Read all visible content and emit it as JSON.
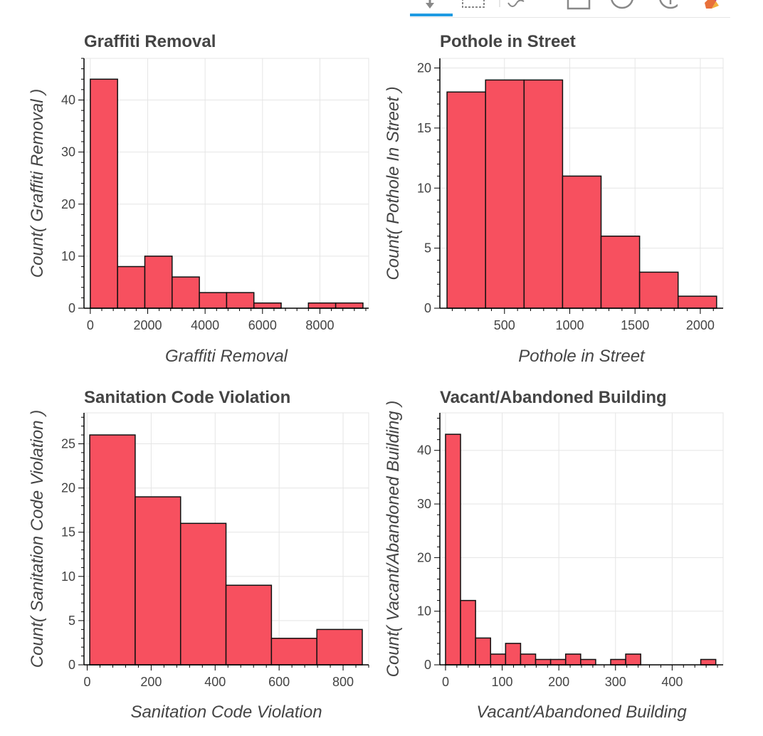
{
  "toolbar": {
    "tools": [
      {
        "name": "pan-tool-icon",
        "active": true
      },
      {
        "name": "box-zoom-tool-icon",
        "active": false
      },
      {
        "name": "wheel-zoom-tool-icon",
        "active": false
      },
      {
        "name": "save-tool-icon",
        "active": false
      },
      {
        "name": "reset-tool-icon",
        "active": false
      },
      {
        "name": "help-tool-icon",
        "active": false
      },
      {
        "name": "bokeh-logo-icon",
        "active": false
      }
    ],
    "active_color": "#1f9be2"
  },
  "colors": {
    "bar_fill": "#f7505f",
    "bar_stroke": "#111111",
    "grid": "#e5e5e5",
    "text": "#444444"
  },
  "chart_data": [
    {
      "type": "bar",
      "title": "Graffiti Removal",
      "xlabel": "Graffiti Removal",
      "ylabel": "Count( Graffiti Removal )",
      "bins": [
        [
          0,
          950
        ],
        [
          950,
          1900
        ],
        [
          1900,
          2850
        ],
        [
          2850,
          3800
        ],
        [
          3800,
          4750
        ],
        [
          4750,
          5700
        ],
        [
          5700,
          6650
        ],
        [
          6650,
          7600
        ],
        [
          7600,
          8550
        ],
        [
          8550,
          9500
        ]
      ],
      "values": [
        44,
        8,
        10,
        6,
        3,
        3,
        1,
        0,
        1,
        1
      ],
      "xlim": [
        -220,
        9700
      ],
      "ylim": [
        0,
        48
      ],
      "xticks": [
        0,
        2000,
        4000,
        6000,
        8000
      ],
      "xtick_labels": [
        "0",
        "2000",
        "4000",
        "6000",
        "8000"
      ],
      "yticks": [
        0,
        10,
        20,
        30,
        40
      ],
      "ytick_labels": [
        "0",
        "10",
        "20",
        "30",
        "40"
      ],
      "grid": true
    },
    {
      "type": "bar",
      "title": "Pothole in Street",
      "xlabel": "Pothole in Street",
      "ylabel": "Count( Pothole In Street )",
      "bins": [
        [
          60,
          355
        ],
        [
          355,
          650
        ],
        [
          650,
          945
        ],
        [
          945,
          1240
        ],
        [
          1240,
          1535
        ],
        [
          1535,
          1830
        ],
        [
          1830,
          2125
        ]
      ],
      "values": [
        18,
        19,
        19,
        11,
        6,
        3,
        1
      ],
      "xlim": [
        5,
        2175
      ],
      "ylim": [
        0,
        20.8
      ],
      "xticks": [
        500,
        1000,
        1500,
        2000
      ],
      "xtick_labels": [
        "500",
        "1000",
        "1500",
        "2000"
      ],
      "yticks": [
        0,
        5,
        10,
        15,
        20
      ],
      "ytick_labels": [
        "0",
        "5",
        "10",
        "15",
        "20"
      ],
      "grid": true
    },
    {
      "type": "bar",
      "title": "Sanitation Code Violation",
      "xlabel": "Sanitation Code Violation",
      "ylabel": "Count( Sanitation Code Violation )",
      "bins": [
        [
          8,
          150
        ],
        [
          150,
          292
        ],
        [
          292,
          434
        ],
        [
          434,
          576
        ],
        [
          576,
          718
        ],
        [
          718,
          860
        ]
      ],
      "values": [
        26,
        19,
        16,
        9,
        3,
        4
      ],
      "xlim": [
        -10,
        880
      ],
      "ylim": [
        0,
        28.5
      ],
      "xticks": [
        0,
        200,
        400,
        600,
        800
      ],
      "xtick_labels": [
        "0",
        "200",
        "400",
        "600",
        "800"
      ],
      "yticks": [
        0,
        5,
        10,
        15,
        20,
        25
      ],
      "ytick_labels": [
        "0",
        "5",
        "10",
        "15",
        "20",
        "25"
      ],
      "grid": true
    },
    {
      "type": "bar",
      "title": "Vacant/Abandoned Building",
      "xlabel": "Vacant/Abandoned Building",
      "ylabel": "Count( Vacant/Abandoned Building )",
      "bins": [
        [
          0,
          26.5
        ],
        [
          26.5,
          53
        ],
        [
          53,
          79.5
        ],
        [
          79.5,
          106
        ],
        [
          106,
          132.5
        ],
        [
          132.5,
          159
        ],
        [
          159,
          185.5
        ],
        [
          185.5,
          212
        ],
        [
          212,
          238.5
        ],
        [
          238.5,
          265
        ],
        [
          265,
          291.5
        ],
        [
          291.5,
          318
        ],
        [
          318,
          344.5
        ],
        [
          344.5,
          371
        ],
        [
          371,
          397.5
        ],
        [
          397.5,
          424
        ],
        [
          424,
          450.5
        ],
        [
          450.5,
          477
        ]
      ],
      "values": [
        43,
        12,
        5,
        2,
        4,
        2,
        1,
        1,
        2,
        1,
        0,
        1,
        2,
        0,
        0,
        0,
        0,
        1
      ],
      "xlim": [
        -10,
        490
      ],
      "ylim": [
        0,
        47
      ],
      "xticks": [
        0,
        100,
        200,
        300,
        400
      ],
      "xtick_labels": [
        "0",
        "100",
        "200",
        "300",
        "400"
      ],
      "yticks": [
        0,
        10,
        20,
        30,
        40
      ],
      "ytick_labels": [
        "0",
        "10",
        "20",
        "30",
        "40"
      ],
      "grid": true
    }
  ]
}
